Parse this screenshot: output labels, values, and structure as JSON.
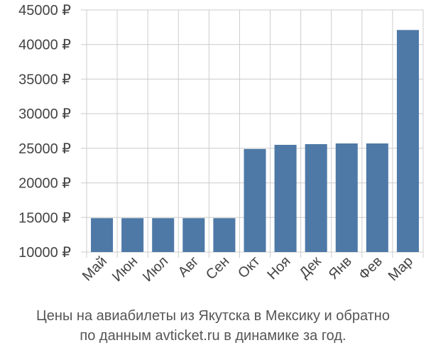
{
  "chart_data": {
    "type": "bar",
    "categories": [
      "Май",
      "Июн",
      "Июл",
      "Авг",
      "Сен",
      "Окт",
      "Ноя",
      "Дек",
      "Янв",
      "Фев",
      "Мар"
    ],
    "values": [
      14900,
      14900,
      14900,
      14900,
      14900,
      24900,
      25500,
      25600,
      25700,
      25700,
      42100
    ],
    "ylim": [
      10000,
      45000
    ],
    "yticks": [
      10000,
      15000,
      20000,
      25000,
      30000,
      35000,
      40000,
      45000
    ],
    "ytick_labels": [
      "10000 ₽",
      "15000 ₽",
      "20000 ₽",
      "25000 ₽",
      "30000 ₽",
      "35000 ₽",
      "40000 ₽",
      "45000 ₽"
    ],
    "grid": true,
    "bar_color": "#4e79a7",
    "title": "",
    "xlabel": "",
    "ylabel": ""
  },
  "caption": {
    "line1": "Цены на авиабилеты из Якутска в Мексику и обратно",
    "line2": "по данным avticket.ru в динамике за год."
  }
}
